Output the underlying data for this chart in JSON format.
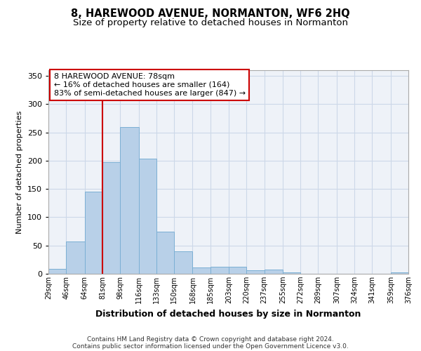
{
  "title": "8, HAREWOOD AVENUE, NORMANTON, WF6 2HQ",
  "subtitle": "Size of property relative to detached houses in Normanton",
  "xlabel": "Distribution of detached houses by size in Normanton",
  "ylabel": "Number of detached properties",
  "footnote1": "Contains HM Land Registry data © Crown copyright and database right 2024.",
  "footnote2": "Contains public sector information licensed under the Open Government Licence v3.0.",
  "annotation_line1": "8 HAREWOOD AVENUE: 78sqm",
  "annotation_line2": "← 16% of detached houses are smaller (164)",
  "annotation_line3": "83% of semi-detached houses are larger (847) →",
  "bar_left_edges": [
    29,
    46,
    64,
    81,
    98,
    116,
    133,
    150,
    168,
    185,
    203,
    220,
    237,
    255,
    272,
    289,
    307,
    324,
    341,
    359
  ],
  "bar_widths": [
    17,
    18,
    17,
    17,
    18,
    17,
    17,
    18,
    17,
    18,
    17,
    17,
    18,
    17,
    17,
    18,
    17,
    17,
    18,
    17
  ],
  "bar_heights": [
    9,
    57,
    145,
    198,
    260,
    203,
    75,
    40,
    11,
    12,
    13,
    6,
    7,
    3,
    0,
    0,
    0,
    0,
    0,
    3
  ],
  "bar_color": "#b8d0e8",
  "bar_edge_color": "#7bafd4",
  "vline_x": 81,
  "vline_color": "#cc0000",
  "grid_color": "#ccd8e8",
  "background_color": "#eef2f8",
  "ylim": [
    0,
    360
  ],
  "yticks": [
    0,
    50,
    100,
    150,
    200,
    250,
    300,
    350
  ],
  "tick_labels": [
    "29sqm",
    "46sqm",
    "64sqm",
    "81sqm",
    "98sqm",
    "116sqm",
    "133sqm",
    "150sqm",
    "168sqm",
    "185sqm",
    "203sqm",
    "220sqm",
    "237sqm",
    "255sqm",
    "272sqm",
    "289sqm",
    "307sqm",
    "324sqm",
    "341sqm",
    "359sqm",
    "376sqm"
  ],
  "annotation_box_color": "#ffffff",
  "annotation_box_edge": "#cc0000",
  "title_fontsize": 10.5,
  "subtitle_fontsize": 9.5,
  "xlabel_fontsize": 9,
  "ylabel_fontsize": 8,
  "tick_fontsize": 7,
  "annotation_fontsize": 8
}
